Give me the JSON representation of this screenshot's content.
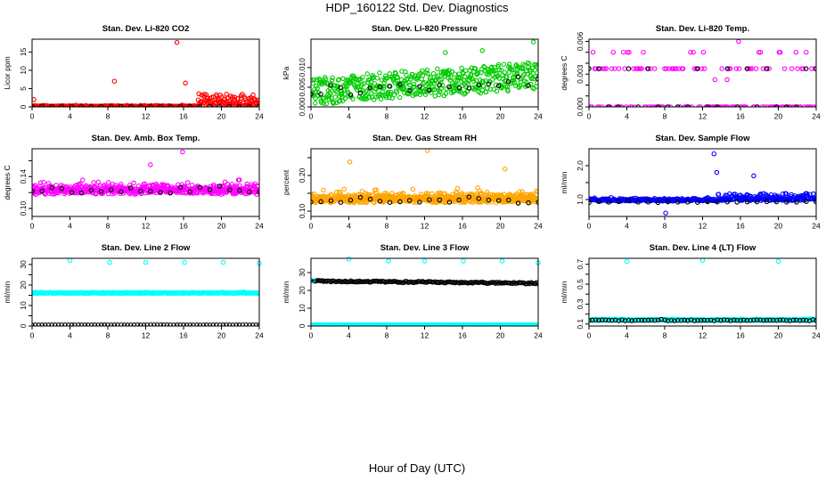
{
  "page": {
    "title": "HDP_160122  Std. Dev. Diagnostics",
    "x_label": "Hour of Day (UTC)"
  },
  "chart_data": [
    {
      "type": "scatter",
      "title": "Stan. Dev. Li-820 CO2",
      "ylabel": "Licor ppm",
      "xlim": [
        0,
        24
      ],
      "ylim": [
        0,
        18.5
      ],
      "x_ticks": [
        0,
        4,
        8,
        12,
        16,
        20,
        24
      ],
      "x_tick_labels": [
        "0",
        "4",
        "8",
        "12",
        "16",
        "20",
        "24"
      ],
      "y_ticks": [
        0,
        5,
        10,
        15
      ],
      "y_tick_labels": [
        "0",
        "5",
        "10",
        "15"
      ],
      "color": "#ff0000",
      "secondary_color": "#000000",
      "series": [
        {
          "name": "primary",
          "color": "#ff0000",
          "model": {
            "kind": "band",
            "base": 0.1,
            "spread": 0.4,
            "late_spread": 5,
            "late_from": 17.5,
            "n": 430,
            "seed": 11
          }
        },
        {
          "name": "secondary",
          "color": "#000000",
          "model": {
            "kind": "band",
            "base": 0.1,
            "spread": 0.2,
            "n": 24,
            "seed": 12
          }
        }
      ],
      "outliers": [
        {
          "x": 0.2,
          "y": 2.0
        },
        {
          "x": 8.7,
          "y": 7.0
        },
        {
          "x": 15.3,
          "y": 17.6
        },
        {
          "x": 16.2,
          "y": 6.5
        }
      ]
    },
    {
      "type": "scatter",
      "title": "Stan. Dev. Li-820 Pressure",
      "ylabel": "kPa",
      "xlim": [
        0,
        24
      ],
      "ylim": [
        0,
        0.0172
      ],
      "x_ticks": [
        0,
        4,
        8,
        12,
        16,
        20,
        24
      ],
      "x_tick_labels": [
        "0",
        "4",
        "8",
        "12",
        "16",
        "20",
        "24"
      ],
      "y_ticks": [
        0,
        0.005,
        0.01
      ],
      "y_tick_labels": [
        "0.000",
        "0.005",
        "0.010"
      ],
      "series": [
        {
          "name": "primary",
          "color": "#00cc00",
          "model": {
            "kind": "trend",
            "start": 0.004,
            "end": 0.008,
            "spread": 0.0035,
            "n": 500,
            "seed": 21
          }
        },
        {
          "name": "secondary",
          "color": "#000000",
          "model": {
            "kind": "trend",
            "start": 0.004,
            "end": 0.007,
            "spread": 0.0015,
            "n": 24,
            "seed": 22
          }
        }
      ],
      "outliers": [
        {
          "x": 23.5,
          "y": 0.0165
        },
        {
          "x": 18.1,
          "y": 0.0143
        },
        {
          "x": 14.2,
          "y": 0.0138
        }
      ]
    },
    {
      "type": "scatter",
      "title": "Stan. Dev. Li-820 Temp.",
      "ylabel": "degrees C",
      "xlim": [
        0,
        24
      ],
      "ylim": [
        0,
        0.0062
      ],
      "x_ticks": [
        0,
        4,
        8,
        12,
        16,
        20,
        24
      ],
      "x_tick_labels": [
        "0",
        "4",
        "8",
        "12",
        "16",
        "20",
        "24"
      ],
      "y_ticks": [
        0,
        0.001,
        0.002,
        0.003,
        0.004,
        0.005,
        0.006
      ],
      "y_tick_labels": [
        "0.000",
        "",
        "",
        "0.003",
        "",
        "",
        "0.006"
      ],
      "series": [
        {
          "name": "primary",
          "color": "#ff00ff",
          "model": {
            "kind": "levels",
            "levels": [
              0,
              0.0035,
              0.005
            ],
            "weights": [
              0.55,
              0.38,
              0.07
            ],
            "n": 160,
            "seed": 31
          }
        },
        {
          "name": "secondary",
          "color": "#000000",
          "model": {
            "kind": "levels",
            "levels": [
              0,
              0.0035
            ],
            "weights": [
              0.7,
              0.3
            ],
            "n": 24,
            "seed": 32
          }
        }
      ],
      "outliers": [
        {
          "x": 15.8,
          "y": 0.006
        },
        {
          "x": 13.3,
          "y": 0.0025
        },
        {
          "x": 14.6,
          "y": 0.0025
        }
      ]
    },
    {
      "type": "scatter",
      "title": "Stan. Dev. Amb. Box Temp.",
      "ylabel": "degrees C",
      "xlim": [
        0,
        24
      ],
      "ylim": [
        0.09,
        0.175
      ],
      "x_ticks": [
        0,
        4,
        8,
        12,
        16,
        20,
        24
      ],
      "x_tick_labels": [
        "0",
        "4",
        "8",
        "12",
        "16",
        "20",
        "24"
      ],
      "y_ticks": [
        0.1,
        0.12,
        0.14,
        0.16
      ],
      "y_tick_labels": [
        "0.10",
        "",
        "0.14",
        ""
      ],
      "series": [
        {
          "name": "primary",
          "color": "#ff00ff",
          "model": {
            "kind": "band",
            "base": 0.121,
            "spread": 0.014,
            "n": 560,
            "seed": 41
          }
        },
        {
          "name": "secondary",
          "color": "#000000",
          "model": {
            "kind": "band",
            "base": 0.121,
            "spread": 0.01,
            "n": 24,
            "seed": 42
          }
        }
      ],
      "outliers": [
        {
          "x": 15.9,
          "y": 0.171
        },
        {
          "x": 12.5,
          "y": 0.155
        }
      ]
    },
    {
      "type": "scatter",
      "title": "Stan. Dev. Gas Stream RH",
      "ylabel": "percent",
      "xlim": [
        0,
        24
      ],
      "ylim": [
        0.085,
        0.275
      ],
      "x_ticks": [
        0,
        4,
        8,
        12,
        16,
        20,
        24
      ],
      "x_tick_labels": [
        "0",
        "4",
        "8",
        "12",
        "16",
        "20",
        "24"
      ],
      "y_ticks": [
        0.1,
        0.15,
        0.2,
        0.25
      ],
      "y_tick_labels": [
        "0.10",
        "",
        "0.20",
        ""
      ],
      "series": [
        {
          "name": "primary",
          "color": "#ffa500",
          "model": {
            "kind": "band",
            "base": 0.13,
            "spread": 0.03,
            "n": 620,
            "seed": 51
          }
        },
        {
          "name": "secondary",
          "color": "#000000",
          "model": {
            "kind": "band",
            "base": 0.125,
            "spread": 0.018,
            "n": 24,
            "seed": 52
          }
        }
      ],
      "outliers": [
        {
          "x": 12.3,
          "y": 0.27
        },
        {
          "x": 4.1,
          "y": 0.238
        },
        {
          "x": 20.5,
          "y": 0.218
        }
      ]
    },
    {
      "type": "scatter",
      "title": "Stan. Dev. Sample Flow",
      "ylabel": "ml/min",
      "xlim": [
        0,
        24
      ],
      "ylim": [
        0.5,
        2.5
      ],
      "x_ticks": [
        0,
        4,
        8,
        12,
        16,
        20,
        24
      ],
      "x_tick_labels": [
        "0",
        "4",
        "8",
        "12",
        "16",
        "20",
        "24"
      ],
      "y_ticks": [
        1,
        1.5,
        2
      ],
      "y_tick_labels": [
        "1.0",
        "",
        "2.0"
      ],
      "series": [
        {
          "name": "primary",
          "color": "#0000ff",
          "model": {
            "kind": "band",
            "base": 0.97,
            "spread": 0.09,
            "late_spread": 0.3,
            "late_from": 13.5,
            "n": 430,
            "seed": 61
          }
        },
        {
          "name": "secondary",
          "color": "#000000",
          "model": {
            "kind": "band",
            "base": 0.92,
            "spread": 0.05,
            "n": 24,
            "seed": 62
          }
        }
      ],
      "outliers": [
        {
          "x": 13.2,
          "y": 2.35
        },
        {
          "x": 13.5,
          "y": 1.8
        },
        {
          "x": 8.1,
          "y": 0.6
        },
        {
          "x": 17.4,
          "y": 1.7
        }
      ]
    },
    {
      "type": "scatter",
      "title": "Stan. Dev. Line 2 Flow",
      "ylabel": "ml/min",
      "xlim": [
        0,
        24
      ],
      "ylim": [
        0,
        33
      ],
      "x_ticks": [
        0,
        4,
        8,
        12,
        16,
        20,
        24
      ],
      "x_tick_labels": [
        "0",
        "4",
        "8",
        "12",
        "16",
        "20",
        "24"
      ],
      "y_ticks": [
        0,
        5,
        10,
        15,
        20,
        25,
        30
      ],
      "y_tick_labels": [
        "0",
        "",
        "10",
        "",
        "20",
        "",
        "30"
      ],
      "series": [
        {
          "name": "primary",
          "color": "#00ffff",
          "model": {
            "kind": "band",
            "base": 16,
            "spread": 0.6,
            "n": 480,
            "seed": 71
          }
        },
        {
          "name": "secondary",
          "color": "#000000",
          "model": {
            "kind": "band",
            "base": 0.5,
            "spread": 0.1,
            "n": 70,
            "seed": 72
          }
        }
      ],
      "outliers": [
        {
          "x": 4.0,
          "y": 32
        },
        {
          "x": 8.2,
          "y": 31
        },
        {
          "x": 12.0,
          "y": 31
        },
        {
          "x": 16.1,
          "y": 31
        },
        {
          "x": 20.2,
          "y": 31
        },
        {
          "x": 24.0,
          "y": 30.5
        }
      ]
    },
    {
      "type": "scatter",
      "title": "Stan. Dev. Line 3 Flow",
      "ylabel": "ml/min",
      "xlim": [
        0,
        24
      ],
      "ylim": [
        0,
        38
      ],
      "x_ticks": [
        0,
        4,
        8,
        12,
        16,
        20,
        24
      ],
      "x_tick_labels": [
        "0",
        "4",
        "8",
        "12",
        "16",
        "20",
        "24"
      ],
      "y_ticks": [
        0,
        10,
        20,
        30
      ],
      "y_tick_labels": [
        "0",
        "10",
        "20",
        "30"
      ],
      "series": [
        {
          "name": "primary",
          "color": "#00ffff",
          "model": {
            "kind": "band",
            "base": 0.6,
            "spread": 0.15,
            "n": 480,
            "seed": 81
          }
        },
        {
          "name": "secondary",
          "color": "#000000",
          "model": {
            "kind": "trend",
            "start": 25.3,
            "end": 24.0,
            "spread": 0.4,
            "n": 160,
            "seed": 82
          }
        }
      ],
      "outliers": [
        {
          "x": 4.0,
          "y": 37.5
        },
        {
          "x": 8.2,
          "y": 36.5
        },
        {
          "x": 12.0,
          "y": 36.5
        },
        {
          "x": 16.1,
          "y": 36.5
        },
        {
          "x": 20.2,
          "y": 36.5
        },
        {
          "x": 24.0,
          "y": 35.5
        },
        {
          "x": 0.2,
          "y": 25.5
        }
      ]
    },
    {
      "type": "scatter",
      "title": "Stan. Dev. Line 4 (LT) Flow",
      "ylabel": "ml/min",
      "xlim": [
        0,
        24
      ],
      "ylim": [
        0.08,
        0.76
      ],
      "x_ticks": [
        0,
        4,
        8,
        12,
        16,
        20,
        24
      ],
      "x_tick_labels": [
        "0",
        "4",
        "8",
        "12",
        "16",
        "20",
        "24"
      ],
      "y_ticks": [
        0.1,
        0.2,
        0.3,
        0.4,
        0.5,
        0.6,
        0.7
      ],
      "y_tick_labels": [
        "0.1",
        "",
        "0.3",
        "",
        "0.5",
        "",
        "0.7"
      ],
      "series": [
        {
          "name": "primary",
          "color": "#00ffff",
          "model": {
            "kind": "band",
            "base": 0.14,
            "spread": 0.012,
            "n": 480,
            "seed": 91
          }
        },
        {
          "name": "secondary",
          "color": "#000000",
          "model": {
            "kind": "band",
            "base": 0.135,
            "spread": 0.01,
            "n": 70,
            "seed": 92
          }
        }
      ],
      "outliers": [
        {
          "x": 4.0,
          "y": 0.73
        },
        {
          "x": 12.0,
          "y": 0.74
        },
        {
          "x": 20.0,
          "y": 0.73
        }
      ]
    }
  ]
}
